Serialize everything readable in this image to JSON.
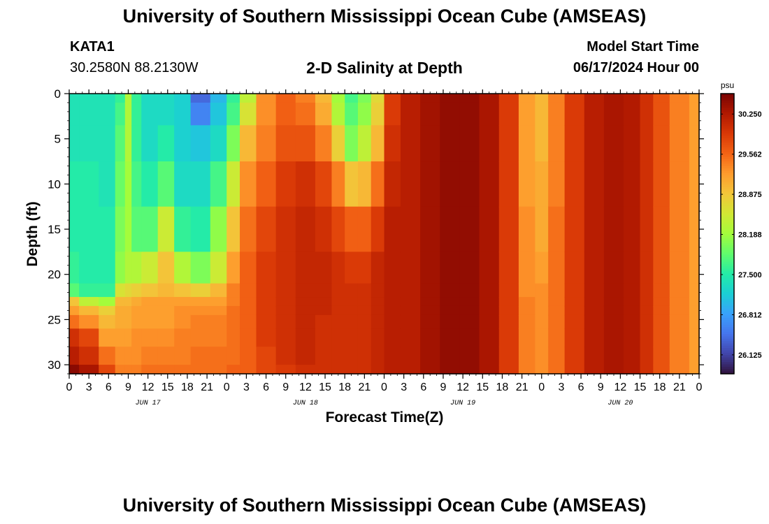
{
  "header": {
    "title": "University of Southern Mississippi Ocean Cube (AMSEAS)",
    "station": "KATA1",
    "coords": "30.2580N  88.2130W",
    "subtitle": "2-D Salinity at Depth",
    "start_label": "Model Start Time",
    "start_value": "06/17/2024 Hour 00"
  },
  "footer": {
    "title_repeat": "University of Southern Mississippi Ocean Cube (AMSEAS)"
  },
  "chart_data": {
    "type": "heatmap",
    "title": "2-D Salinity at Depth",
    "xlabel": "Forecast Time(Z)",
    "ylabel": "Depth (ft)",
    "x_hours_range": [
      0,
      96
    ],
    "xticks": [
      "0",
      "3",
      "6",
      "9",
      "12",
      "15",
      "18",
      "21",
      "0",
      "3",
      "6",
      "9",
      "12",
      "15",
      "18",
      "21",
      "0",
      "3",
      "6",
      "9",
      "12",
      "15",
      "18",
      "21",
      "0",
      "3",
      "6",
      "9",
      "12",
      "15",
      "18",
      "21",
      "0"
    ],
    "day_labels": [
      {
        "label": "JUN 17",
        "hour": 12
      },
      {
        "label": "JUN 18",
        "hour": 36
      },
      {
        "label": "JUN 19",
        "hour": 60
      },
      {
        "label": "JUN 20",
        "hour": 84
      }
    ],
    "yticks": [
      0,
      5,
      10,
      15,
      20,
      25,
      30
    ],
    "ylim": [
      0,
      31
    ],
    "colorbar": {
      "unit": "psu",
      "range": [
        25.8,
        30.6
      ],
      "ticks": [
        30.25,
        29.562,
        28.875,
        28.188,
        27.5,
        26.812,
        26.125
      ],
      "tick_labels": [
        "30.250",
        "29.562",
        "28.875",
        "28.188",
        "27.500",
        "26.812",
        "26.125"
      ],
      "colors": [
        "#30123b",
        "#4145ab",
        "#4675ed",
        "#39a2fc",
        "#1bcfd4",
        "#24eca6",
        "#61fc6c",
        "#a4fc3b",
        "#d1e834",
        "#f3c63a",
        "#fe9b2d",
        "#f36315",
        "#d93806",
        "#b11901",
        "#7a0402"
      ]
    },
    "depth_profile_ft": [
      0,
      2,
      5,
      10,
      15,
      20,
      22,
      23,
      24,
      25,
      27,
      29,
      31
    ],
    "salinity_series": [
      {
        "hour": 0,
        "values": [
          27.4,
          27.4,
          27.4,
          27.5,
          27.5,
          27.6,
          27.8,
          28.9,
          29.2,
          29.5,
          30.0,
          30.2,
          30.5
        ]
      },
      {
        "hour": 3,
        "values": [
          27.4,
          27.4,
          27.4,
          27.5,
          27.5,
          27.5,
          27.6,
          28.4,
          29.0,
          29.3,
          29.8,
          30.0,
          30.3
        ]
      },
      {
        "hour": 6,
        "values": [
          27.4,
          27.4,
          27.4,
          27.4,
          27.5,
          27.5,
          27.6,
          28.2,
          28.8,
          29.0,
          29.2,
          29.5,
          29.8
        ]
      },
      {
        "hour": 8,
        "values": [
          27.6,
          27.7,
          27.8,
          27.9,
          28.0,
          28.1,
          28.6,
          29.0,
          29.1,
          29.1,
          29.2,
          29.3,
          29.4
        ]
      },
      {
        "hour": 9,
        "values": [
          28.3,
          28.3,
          28.3,
          28.2,
          28.2,
          28.3,
          28.7,
          29.0,
          29.1,
          29.1,
          29.2,
          29.3,
          29.4
        ]
      },
      {
        "hour": 10,
        "values": [
          27.6,
          27.6,
          27.6,
          27.7,
          27.8,
          28.3,
          28.8,
          29.1,
          29.2,
          29.2,
          29.3,
          29.3,
          29.4
        ]
      },
      {
        "hour": 12,
        "values": [
          27.3,
          27.3,
          27.3,
          27.5,
          27.8,
          28.5,
          28.9,
          29.2,
          29.2,
          29.2,
          29.3,
          29.4,
          29.5
        ]
      },
      {
        "hour": 15,
        "values": [
          27.3,
          27.3,
          27.5,
          27.8,
          28.5,
          28.9,
          29.0,
          29.2,
          29.2,
          29.2,
          29.3,
          29.4,
          29.5
        ]
      },
      {
        "hour": 17,
        "values": [
          27.2,
          27.2,
          27.2,
          27.3,
          27.6,
          28.3,
          28.9,
          29.2,
          29.3,
          29.3,
          29.4,
          29.4,
          29.5
        ]
      },
      {
        "hour": 20,
        "values": [
          26.4,
          26.6,
          27.1,
          27.3,
          27.5,
          28.0,
          28.8,
          29.2,
          29.3,
          29.4,
          29.4,
          29.5,
          29.5
        ]
      },
      {
        "hour": 23,
        "values": [
          27.0,
          27.1,
          27.3,
          27.7,
          28.1,
          28.5,
          29.0,
          29.2,
          29.3,
          29.4,
          29.4,
          29.5,
          29.5
        ]
      },
      {
        "hour": 25,
        "values": [
          27.6,
          27.7,
          28.0,
          28.5,
          28.9,
          29.2,
          29.4,
          29.4,
          29.5,
          29.5,
          29.5,
          29.5,
          29.6
        ]
      },
      {
        "hour": 27,
        "values": [
          28.4,
          28.6,
          29.0,
          29.3,
          29.5,
          29.6,
          29.6,
          29.6,
          29.6,
          29.6,
          29.6,
          29.6,
          29.6
        ]
      },
      {
        "hour": 30,
        "values": [
          29.3,
          29.3,
          29.4,
          29.6,
          29.8,
          29.9,
          29.9,
          29.9,
          29.9,
          29.9,
          29.9,
          29.8,
          29.8
        ]
      },
      {
        "hour": 33,
        "values": [
          29.6,
          29.6,
          29.7,
          29.9,
          30.0,
          30.0,
          30.0,
          30.0,
          30.0,
          30.0,
          30.0,
          30.0,
          29.9
        ]
      },
      {
        "hour": 36,
        "values": [
          29.4,
          29.5,
          29.7,
          30.0,
          30.1,
          30.1,
          30.1,
          30.1,
          30.1,
          30.1,
          30.1,
          30.1,
          30.0
        ]
      },
      {
        "hour": 39,
        "values": [
          29.0,
          29.1,
          29.4,
          29.8,
          30.0,
          30.1,
          30.1,
          30.1,
          30.1,
          30.0,
          30.0,
          30.0,
          30.0
        ]
      },
      {
        "hour": 41,
        "values": [
          28.2,
          28.3,
          28.8,
          29.4,
          29.8,
          30.0,
          30.0,
          30.0,
          30.0,
          30.0,
          30.0,
          30.0,
          30.0
        ]
      },
      {
        "hour": 43,
        "values": [
          27.7,
          27.8,
          28.0,
          28.9,
          29.6,
          29.9,
          30.0,
          30.0,
          30.0,
          30.0,
          30.0,
          30.0,
          30.0
        ]
      },
      {
        "hour": 45,
        "values": [
          28.0,
          28.1,
          28.4,
          29.0,
          29.6,
          29.9,
          30.0,
          30.0,
          30.0,
          30.0,
          30.0,
          30.0,
          30.0
        ]
      },
      {
        "hour": 47,
        "values": [
          28.7,
          28.8,
          29.0,
          29.5,
          29.9,
          30.1,
          30.1,
          30.1,
          30.1,
          30.1,
          30.1,
          30.1,
          30.1
        ]
      },
      {
        "hour": 49,
        "values": [
          29.9,
          29.9,
          30.0,
          30.1,
          30.2,
          30.2,
          30.2,
          30.2,
          30.2,
          30.2,
          30.2,
          30.2,
          30.2
        ]
      },
      {
        "hour": 52,
        "values": [
          30.2,
          30.2,
          30.2,
          30.2,
          30.2,
          30.2,
          30.2,
          30.2,
          30.2,
          30.2,
          30.2,
          30.2,
          30.2
        ]
      },
      {
        "hour": 55,
        "values": [
          30.35,
          30.35,
          30.35,
          30.35,
          30.35,
          30.35,
          30.35,
          30.35,
          30.35,
          30.35,
          30.35,
          30.35,
          30.35
        ]
      },
      {
        "hour": 58,
        "values": [
          30.45,
          30.45,
          30.45,
          30.45,
          30.45,
          30.45,
          30.45,
          30.45,
          30.45,
          30.45,
          30.45,
          30.45,
          30.45
        ]
      },
      {
        "hour": 61,
        "values": [
          30.45,
          30.45,
          30.45,
          30.45,
          30.45,
          30.45,
          30.45,
          30.45,
          30.45,
          30.45,
          30.45,
          30.45,
          30.45
        ]
      },
      {
        "hour": 64,
        "values": [
          30.3,
          30.3,
          30.3,
          30.3,
          30.3,
          30.3,
          30.3,
          30.3,
          30.3,
          30.3,
          30.3,
          30.3,
          30.3
        ]
      },
      {
        "hour": 67,
        "values": [
          29.9,
          29.9,
          29.9,
          29.9,
          29.9,
          29.9,
          29.9,
          29.9,
          29.9,
          29.9,
          29.9,
          29.9,
          29.9
        ]
      },
      {
        "hour": 70,
        "values": [
          29.2,
          29.2,
          29.2,
          29.2,
          29.3,
          29.3,
          29.3,
          29.4,
          29.4,
          29.4,
          29.4,
          29.4,
          29.4
        ]
      },
      {
        "hour": 72,
        "values": [
          29.0,
          29.0,
          29.0,
          29.1,
          29.1,
          29.2,
          29.3,
          29.3,
          29.3,
          29.3,
          29.3,
          29.3,
          29.3
        ]
      },
      {
        "hour": 74,
        "values": [
          29.4,
          29.4,
          29.4,
          29.4,
          29.5,
          29.5,
          29.5,
          29.5,
          29.5,
          29.5,
          29.5,
          29.5,
          29.5
        ]
      },
      {
        "hour": 77,
        "values": [
          29.9,
          29.9,
          29.9,
          29.9,
          29.9,
          29.9,
          29.9,
          29.9,
          29.9,
          29.9,
          29.9,
          29.9,
          29.9
        ]
      },
      {
        "hour": 80,
        "values": [
          30.2,
          30.2,
          30.2,
          30.2,
          30.2,
          30.2,
          30.2,
          30.2,
          30.2,
          30.2,
          30.2,
          30.2,
          30.2
        ]
      },
      {
        "hour": 83,
        "values": [
          30.3,
          30.3,
          30.3,
          30.3,
          30.3,
          30.3,
          30.3,
          30.3,
          30.3,
          30.3,
          30.3,
          30.3,
          30.3
        ]
      },
      {
        "hour": 86,
        "values": [
          30.25,
          30.25,
          30.25,
          30.25,
          30.25,
          30.25,
          30.25,
          30.25,
          30.25,
          30.25,
          30.25,
          30.25,
          30.25
        ]
      },
      {
        "hour": 88,
        "values": [
          30.0,
          30.0,
          30.0,
          30.0,
          30.0,
          30.0,
          30.0,
          30.0,
          30.0,
          30.0,
          30.0,
          30.0,
          30.0
        ]
      },
      {
        "hour": 90,
        "values": [
          29.7,
          29.7,
          29.7,
          29.7,
          29.7,
          29.7,
          29.7,
          29.7,
          29.7,
          29.7,
          29.7,
          29.7,
          29.7
        ]
      },
      {
        "hour": 93,
        "values": [
          29.4,
          29.4,
          29.4,
          29.4,
          29.4,
          29.4,
          29.4,
          29.4,
          29.4,
          29.4,
          29.4,
          29.4,
          29.4
        ]
      },
      {
        "hour": 96,
        "values": [
          29.2,
          29.2,
          29.2,
          29.2,
          29.2,
          29.2,
          29.2,
          29.2,
          29.2,
          29.2,
          29.2,
          29.2,
          29.2
        ]
      }
    ]
  }
}
